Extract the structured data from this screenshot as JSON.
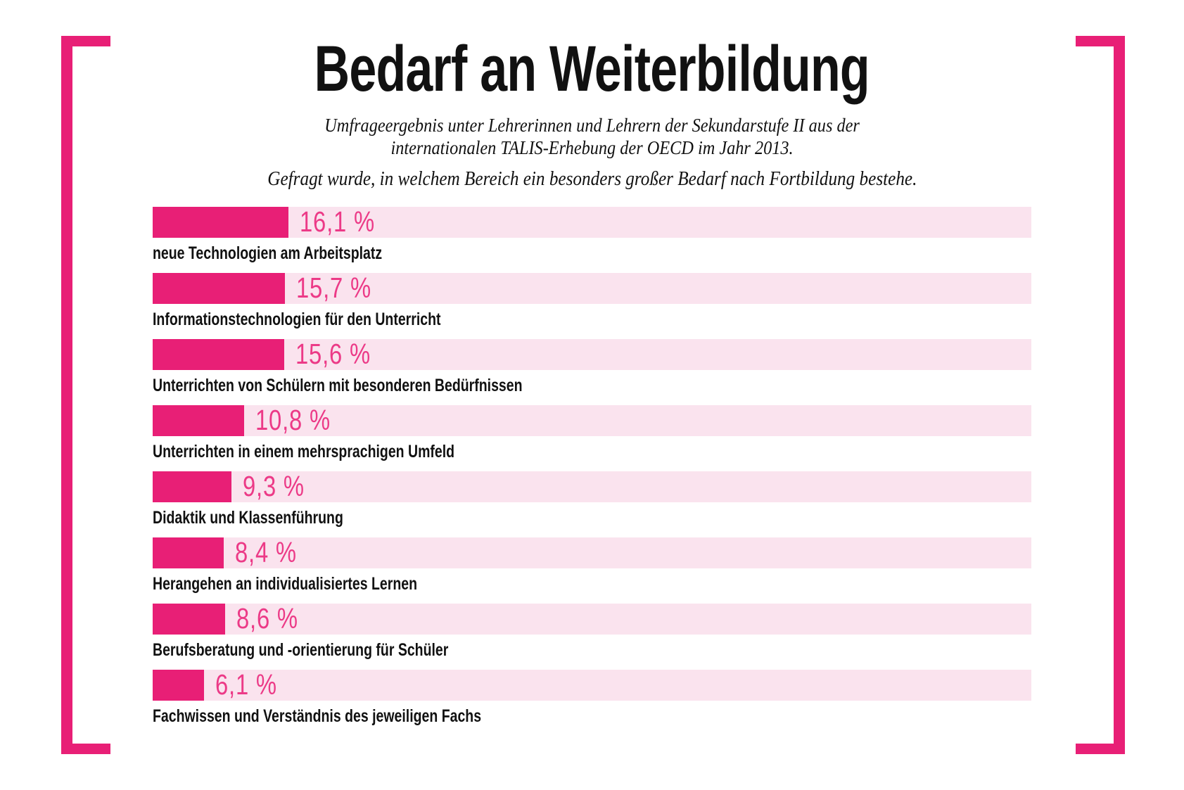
{
  "colors": {
    "accent": "#e81f76",
    "value_text": "#ec3a87",
    "track": "#fae3ee",
    "text": "#111111",
    "background": "#ffffff"
  },
  "chart_data": {
    "type": "bar",
    "orientation": "horizontal",
    "title": "Bedarf an Weiterbildung",
    "subtitle_line1": "Umfrageergebnis unter Lehrerinnen und Lehrern der Sekundarstufe II aus der",
    "subtitle_line2": "internationalen TALIS-Erhebung der OECD im Jahr 2013.",
    "question": "Gefragt wurde, in welchem Bereich ein besonders großer Bedarf nach Fortbildung bestehe.",
    "unit": "%",
    "categories": [
      "neue Technologien am Arbeitsplatz",
      "Informationstechnologien für den Unterricht",
      "Unterrichten von Schülern mit besonderen Bedürfnissen",
      "Unterrichten in einem mehrsprachigen Umfeld",
      "Didaktik und Klassenführung",
      "Herangehen an individualisiertes Lernen",
      "Berufsberatung und -orientierung für Schüler",
      "Fachwissen und Verständnis des jeweiligen Fachs"
    ],
    "values": [
      16.1,
      15.7,
      15.6,
      10.8,
      9.3,
      8.4,
      8.6,
      6.1
    ],
    "value_labels": [
      "16,1 %",
      "15,7 %",
      "15,6 %",
      "10,8 %",
      "9,3 %",
      "8,4 %",
      "8,6 %",
      "6,1 %"
    ],
    "value_label_position": "right-of-bar",
    "category_label_position": "below-bar",
    "grid": false,
    "legend": false,
    "axis_ticks": false,
    "xlim": [
      0,
      16.1
    ]
  }
}
